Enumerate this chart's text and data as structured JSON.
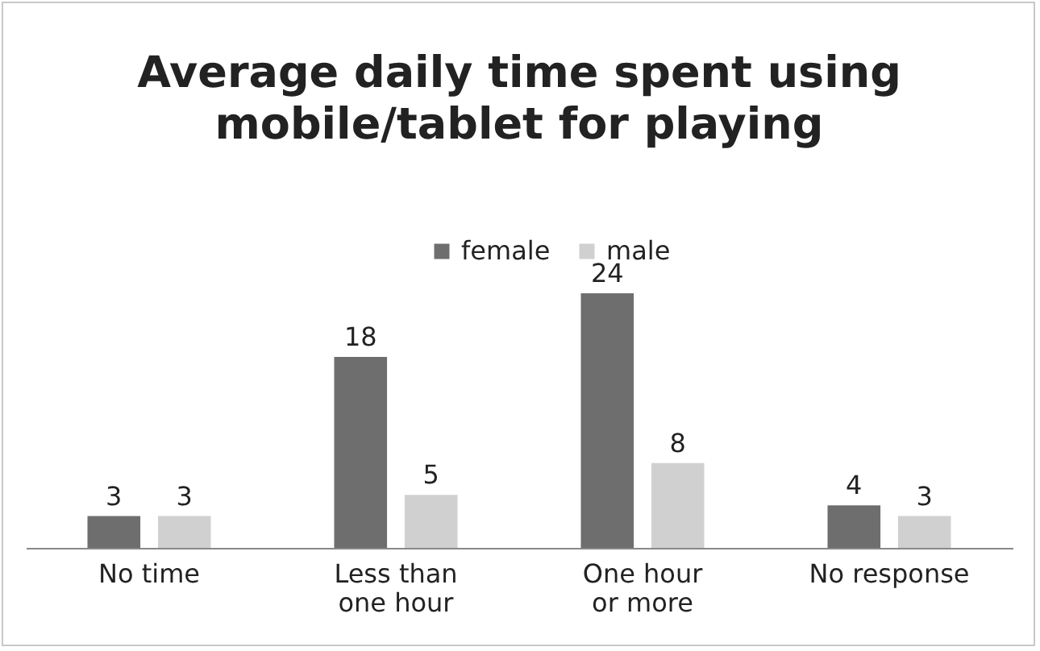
{
  "chart_data": {
    "type": "bar",
    "title": "Average daily time spent using mobile/tablet for playing",
    "categories": [
      "No time",
      "Less than one hour",
      "One hour or more",
      "No response"
    ],
    "series": [
      {
        "name": "female",
        "color": "#6e6e6e",
        "values": [
          3,
          18,
          24,
          4
        ]
      },
      {
        "name": "male",
        "color": "#d0d0d0",
        "values": [
          3,
          5,
          8,
          3
        ]
      }
    ],
    "data_labels": true,
    "legend": "top",
    "grid": false
  }
}
